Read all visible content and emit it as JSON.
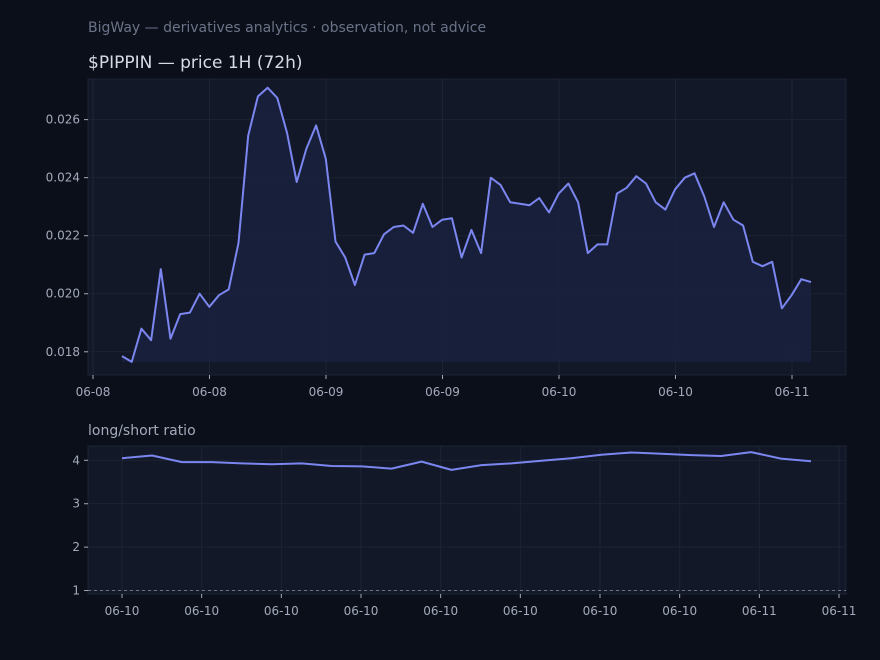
{
  "header": {
    "subtitle": "BigWay — derivatives analytics · observation, not advice"
  },
  "colors": {
    "background": "#0b0f1a",
    "panel": "#121827",
    "line": "#7b86f0",
    "area": "#1a2140",
    "grid": "#1c2334",
    "reference_line": "#6b7388"
  },
  "chart_data": [
    {
      "type": "area",
      "title": "$PIPPIN — price 1H (72h)",
      "ylim": [
        0.0172,
        0.0274
      ],
      "yticks": [
        "0.018",
        "0.020",
        "0.022",
        "0.024",
        "0.026"
      ],
      "ytick_values": [
        0.018,
        0.02,
        0.022,
        0.024,
        0.026
      ],
      "xticks": [
        "06-08",
        "06-08",
        "06-09",
        "06-09",
        "06-10",
        "06-10",
        "06-11"
      ],
      "grid": true,
      "series": [
        {
          "values": [
            0.01785,
            0.01765,
            0.0188,
            0.0184,
            0.02085,
            0.01845,
            0.0193,
            0.01935,
            0.02,
            0.01955,
            0.01995,
            0.02015,
            0.02175,
            0.02545,
            0.0268,
            0.0271,
            0.02675,
            0.02555,
            0.02385,
            0.025,
            0.0258,
            0.02465,
            0.0218,
            0.02125,
            0.0203,
            0.02135,
            0.0214,
            0.02205,
            0.0223,
            0.02235,
            0.0221,
            0.0231,
            0.0223,
            0.02255,
            0.0226,
            0.02125,
            0.0222,
            0.0214,
            0.024,
            0.02375,
            0.02315,
            0.0231,
            0.02305,
            0.0233,
            0.0228,
            0.02345,
            0.0238,
            0.02315,
            0.0214,
            0.0217,
            0.0217,
            0.02345,
            0.02365,
            0.02405,
            0.0238,
            0.02315,
            0.0229,
            0.0236,
            0.024,
            0.02415,
            0.02335,
            0.0223,
            0.02315,
            0.02255,
            0.02235,
            0.0211,
            0.02095,
            0.0211,
            0.0195,
            0.01995,
            0.0205,
            0.0204
          ]
        }
      ]
    },
    {
      "type": "line",
      "title": "long/short ratio",
      "ylim": [
        0.92,
        4.33
      ],
      "yticks": [
        "1",
        "2",
        "3",
        "4"
      ],
      "ytick_values": [
        1,
        2,
        3,
        4
      ],
      "xticks": [
        "06-10",
        "06-10",
        "06-10",
        "06-10",
        "06-10",
        "06-10",
        "06-10",
        "06-10",
        "06-11",
        "06-11"
      ],
      "reference_value": 1,
      "grid": true,
      "series": [
        {
          "values": [
            4.05,
            4.11,
            3.96,
            3.96,
            3.93,
            3.91,
            3.93,
            3.87,
            3.86,
            3.81,
            3.97,
            3.78,
            3.89,
            3.93,
            3.99,
            4.05,
            4.13,
            4.18,
            4.15,
            4.12,
            4.1,
            4.19,
            4.04,
            3.98
          ]
        }
      ]
    }
  ]
}
